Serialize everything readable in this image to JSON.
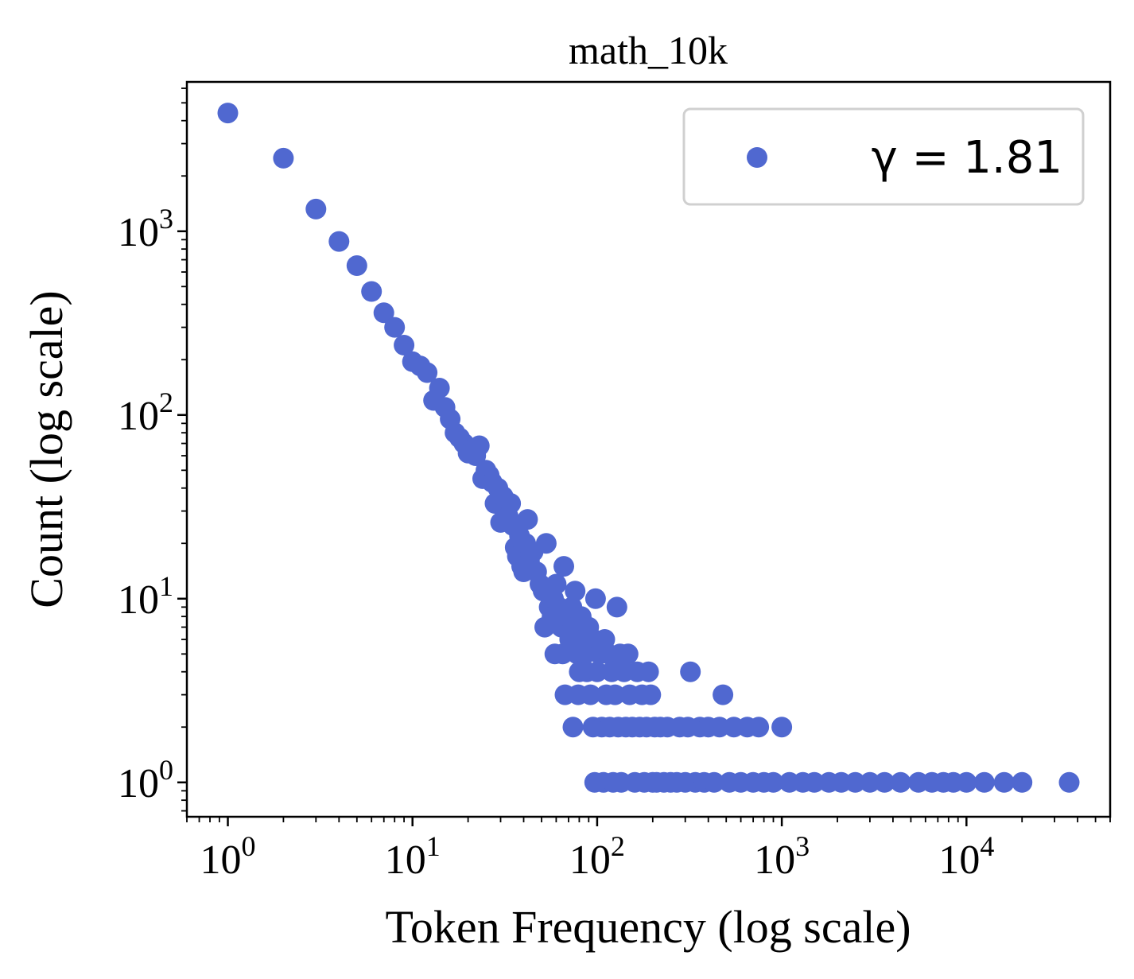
{
  "chart_data": {
    "type": "scatter",
    "title": "math_10k",
    "xlabel": "Token Frequency (log scale)",
    "ylabel": "Count (log scale)",
    "xscale": "log",
    "yscale": "log",
    "xlim": [
      0.6,
      60000
    ],
    "ylim": [
      0.65,
      6500
    ],
    "grid": false,
    "legend_position": "top-right",
    "x_tick_labels": [
      {
        "base": "10",
        "exp": "0",
        "value": 1
      },
      {
        "base": "10",
        "exp": "1",
        "value": 10
      },
      {
        "base": "10",
        "exp": "2",
        "value": 100
      },
      {
        "base": "10",
        "exp": "3",
        "value": 1000
      },
      {
        "base": "10",
        "exp": "4",
        "value": 10000
      }
    ],
    "y_tick_labels": [
      {
        "base": "10",
        "exp": "0",
        "value": 1
      },
      {
        "base": "10",
        "exp": "1",
        "value": 10
      },
      {
        "base": "10",
        "exp": "2",
        "value": 100
      },
      {
        "base": "10",
        "exp": "3",
        "value": 1000
      }
    ],
    "series": [
      {
        "name": "γ = 1.81",
        "color": "#5068d0",
        "points": [
          [
            1,
            4400
          ],
          [
            2,
            2500
          ],
          [
            3,
            1320
          ],
          [
            4,
            880
          ],
          [
            5,
            650
          ],
          [
            6,
            470
          ],
          [
            7,
            360
          ],
          [
            8,
            300
          ],
          [
            9,
            240
          ],
          [
            10,
            195
          ],
          [
            11,
            185
          ],
          [
            12,
            170
          ],
          [
            13,
            120
          ],
          [
            14,
            140
          ],
          [
            15,
            110
          ],
          [
            16,
            95
          ],
          [
            17,
            80
          ],
          [
            18,
            75
          ],
          [
            19,
            70
          ],
          [
            20,
            62
          ],
          [
            21,
            65
          ],
          [
            22,
            60
          ],
          [
            23,
            68
          ],
          [
            24,
            45
          ],
          [
            25,
            50
          ],
          [
            26,
            47
          ],
          [
            27,
            43
          ],
          [
            28,
            33
          ],
          [
            29,
            40
          ],
          [
            30,
            26
          ],
          [
            31,
            36
          ],
          [
            32,
            30
          ],
          [
            33,
            28
          ],
          [
            34,
            33
          ],
          [
            35,
            25
          ],
          [
            36,
            19
          ],
          [
            37,
            17
          ],
          [
            38,
            22
          ],
          [
            39,
            15
          ],
          [
            40,
            14
          ],
          [
            41,
            20
          ],
          [
            42,
            27
          ],
          [
            43,
            16
          ],
          [
            45,
            18
          ],
          [
            47,
            14
          ],
          [
            49,
            12
          ],
          [
            51,
            11
          ],
          [
            52,
            7
          ],
          [
            53,
            20
          ],
          [
            55,
            9
          ],
          [
            57,
            8
          ],
          [
            58,
            10
          ],
          [
            59,
            5
          ],
          [
            60,
            12
          ],
          [
            62,
            9
          ],
          [
            64,
            7
          ],
          [
            65,
            5
          ],
          [
            66,
            15
          ],
          [
            67,
            3
          ],
          [
            69,
            8
          ],
          [
            71,
            6
          ],
          [
            73,
            9
          ],
          [
            74,
            2
          ],
          [
            75,
            7
          ],
          [
            76,
            11
          ],
          [
            78,
            5
          ],
          [
            79,
            3
          ],
          [
            80,
            4
          ],
          [
            82,
            8
          ],
          [
            84,
            6
          ],
          [
            86,
            5
          ],
          [
            88,
            4
          ],
          [
            90,
            7
          ],
          [
            92,
            3
          ],
          [
            95,
            2
          ],
          [
            96,
            6
          ],
          [
            97,
            1
          ],
          [
            98,
            10
          ],
          [
            100,
            4
          ],
          [
            103,
            5
          ],
          [
            106,
            2
          ],
          [
            108,
            1
          ],
          [
            110,
            6
          ],
          [
            112,
            3
          ],
          [
            115,
            5
          ],
          [
            117,
            2
          ],
          [
            120,
            4
          ],
          [
            122,
            1
          ],
          [
            125,
            3
          ],
          [
            128,
            9
          ],
          [
            130,
            2
          ],
          [
            133,
            5
          ],
          [
            135,
            1
          ],
          [
            140,
            4
          ],
          [
            143,
            2
          ],
          [
            147,
            5
          ],
          [
            150,
            3
          ],
          [
            155,
            2
          ],
          [
            160,
            1
          ],
          [
            165,
            4
          ],
          [
            170,
            2
          ],
          [
            175,
            3
          ],
          [
            180,
            1
          ],
          [
            185,
            2
          ],
          [
            190,
            4
          ],
          [
            195,
            3
          ],
          [
            200,
            1
          ],
          [
            205,
            2
          ],
          [
            210,
            1
          ],
          [
            220,
            2
          ],
          [
            230,
            1
          ],
          [
            240,
            2
          ],
          [
            250,
            1
          ],
          [
            270,
            1
          ],
          [
            280,
            2
          ],
          [
            300,
            1
          ],
          [
            310,
            2
          ],
          [
            320,
            4
          ],
          [
            340,
            1
          ],
          [
            360,
            2
          ],
          [
            380,
            1
          ],
          [
            400,
            2
          ],
          [
            430,
            1
          ],
          [
            460,
            2
          ],
          [
            480,
            3
          ],
          [
            520,
            1
          ],
          [
            550,
            2
          ],
          [
            600,
            1
          ],
          [
            650,
            2
          ],
          [
            700,
            1
          ],
          [
            750,
            2
          ],
          [
            800,
            1
          ],
          [
            900,
            1
          ],
          [
            1000,
            2
          ],
          [
            1100,
            1
          ],
          [
            1300,
            1
          ],
          [
            1500,
            1
          ],
          [
            1800,
            1
          ],
          [
            2100,
            1
          ],
          [
            2500,
            1
          ],
          [
            3000,
            1
          ],
          [
            3600,
            1
          ],
          [
            4400,
            1
          ],
          [
            5500,
            1
          ],
          [
            6500,
            1
          ],
          [
            7500,
            1
          ],
          [
            8500,
            1
          ],
          [
            10000,
            1
          ],
          [
            12500,
            1
          ],
          [
            16000,
            1
          ],
          [
            20000,
            1
          ],
          [
            36000,
            1
          ]
        ]
      }
    ]
  }
}
